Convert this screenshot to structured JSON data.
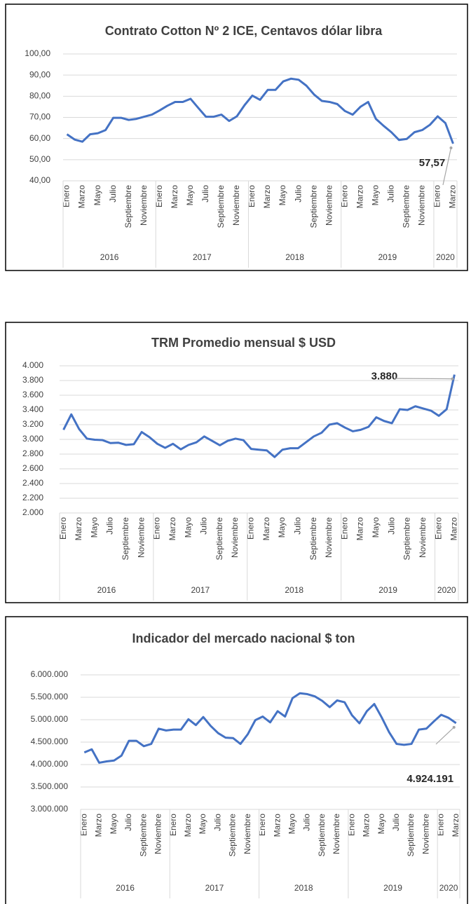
{
  "chart_data": [
    {
      "type": "line",
      "title": "Contrato Cotton Nº 2 ICE, Centavos dólar libra",
      "categories": [
        "Enero",
        null,
        "Marzo",
        null,
        "Mayo",
        null,
        "Julio",
        null,
        "Septiembre",
        null,
        "Noviembre",
        null,
        "Enero",
        null,
        "Marzo",
        null,
        "Mayo",
        null,
        "Julio",
        null,
        "Septiembre",
        null,
        "Noviembre",
        null,
        "Enero",
        null,
        "Marzo",
        null,
        "Mayo",
        null,
        "Julio",
        null,
        "Septiembre",
        null,
        "Noviembre",
        null,
        "Enero",
        null,
        "Marzo",
        null,
        "Mayo",
        null,
        "Julio",
        null,
        "Septiembre",
        null,
        "Noviembre",
        null,
        "Enero",
        null,
        "Marzo"
      ],
      "groups": [
        "2016",
        "2017",
        "2018",
        "2019",
        "2020"
      ],
      "values": [
        62,
        59.5,
        58.5,
        62,
        62.5,
        64,
        69.8,
        69.8,
        68.8,
        69.3,
        70.3,
        71.3,
        73.3,
        75.5,
        77.3,
        77.3,
        78.8,
        74.5,
        70.3,
        70.3,
        71.3,
        68.3,
        70.5,
        75.8,
        80.3,
        78.3,
        83,
        83,
        87,
        88.3,
        87.8,
        85,
        80.8,
        77.8,
        77.3,
        76.3,
        73,
        71.3,
        75,
        77.3,
        69.3,
        66,
        63,
        59.3,
        59.8,
        63,
        64,
        66.5,
        70.5,
        67.3,
        57.57
      ],
      "value_labels": [
        null,
        null,
        null,
        null,
        null,
        null,
        null,
        null,
        null,
        null,
        null,
        null,
        null,
        null,
        null,
        null,
        null,
        null,
        null,
        null,
        null,
        null,
        null,
        null,
        null,
        null,
        null,
        null,
        null,
        null,
        null,
        null,
        null,
        null,
        null,
        null,
        null,
        null,
        null,
        null,
        null,
        null,
        null,
        null,
        null,
        null,
        null,
        null,
        null,
        null,
        "57,57"
      ],
      "color": "#4472c4",
      "ylim": [
        40,
        100
      ],
      "yticks": [
        {
          "value": 40,
          "label": "40,00"
        },
        {
          "value": 50,
          "label": "50,00"
        },
        {
          "value": 60,
          "label": "60,00"
        },
        {
          "value": 70,
          "label": "70,00"
        },
        {
          "value": 80,
          "label": "80,00"
        },
        {
          "value": 90,
          "label": "90,00"
        },
        {
          "value": 100,
          "label": "100,00"
        }
      ],
      "grid": true
    },
    {
      "type": "line",
      "title": "TRM Promedio mensual $ USD",
      "categories": [
        "Enero",
        null,
        "Marzo",
        null,
        "Mayo",
        null,
        "Julio",
        null,
        "Septiembre",
        null,
        "Noviembre",
        null,
        "Enero",
        null,
        "Marzo",
        null,
        "Mayo",
        null,
        "Julio",
        null,
        "Septiembre",
        null,
        "Noviembre",
        null,
        "Enero",
        null,
        "Marzo",
        null,
        "Mayo",
        null,
        "Julio",
        null,
        "Septiembre",
        null,
        "Noviembre",
        null,
        "Enero",
        null,
        "Marzo",
        null,
        "Mayo",
        null,
        "Julio",
        null,
        "Septiembre",
        null,
        "Noviembre",
        null,
        "Enero",
        null,
        "Marzo"
      ],
      "groups": [
        "2016",
        "2017",
        "2018",
        "2019",
        "2020"
      ],
      "values": [
        3130,
        3340,
        3140,
        3010,
        2995,
        2990,
        2950,
        2955,
        2925,
        2935,
        3100,
        3030,
        2940,
        2885,
        2940,
        2865,
        2925,
        2960,
        3040,
        2980,
        2920,
        2980,
        3010,
        2990,
        2870,
        2860,
        2850,
        2760,
        2860,
        2880,
        2880,
        2960,
        3040,
        3090,
        3200,
        3220,
        3160,
        3110,
        3130,
        3170,
        3300,
        3250,
        3220,
        3410,
        3400,
        3450,
        3420,
        3390,
        3320,
        3410,
        3880
      ],
      "value_labels": [
        null,
        null,
        null,
        null,
        null,
        null,
        null,
        null,
        null,
        null,
        null,
        null,
        null,
        null,
        null,
        null,
        null,
        null,
        null,
        null,
        null,
        null,
        null,
        null,
        null,
        null,
        null,
        null,
        null,
        null,
        null,
        null,
        null,
        null,
        null,
        null,
        null,
        null,
        null,
        null,
        null,
        null,
        null,
        null,
        null,
        null,
        null,
        null,
        null,
        null,
        "3.880"
      ],
      "color": "#4472c4",
      "ylim": [
        2000,
        4000
      ],
      "yticks": [
        {
          "value": 2000,
          "label": "2.000"
        },
        {
          "value": 2200,
          "label": "2.200"
        },
        {
          "value": 2400,
          "label": "2.400"
        },
        {
          "value": 2600,
          "label": "2.600"
        },
        {
          "value": 2800,
          "label": "2.800"
        },
        {
          "value": 3000,
          "label": "3.000"
        },
        {
          "value": 3200,
          "label": "3.200"
        },
        {
          "value": 3400,
          "label": "3.400"
        },
        {
          "value": 3600,
          "label": "3.600"
        },
        {
          "value": 3800,
          "label": "3.800"
        },
        {
          "value": 4000,
          "label": "4.000"
        }
      ],
      "grid": true
    },
    {
      "type": "line",
      "title": "Indicador del mercado nacional  $ ton",
      "categories": [
        "Enero",
        null,
        "Marzo",
        null,
        "Mayo",
        null,
        "Julio",
        null,
        "Septiembre",
        null,
        "Noviembre",
        null,
        "Enero",
        null,
        "Marzo",
        null,
        "Mayo",
        null,
        "Julio",
        null,
        "Septiembre",
        null,
        "Noviembre",
        null,
        "Enero",
        null,
        "Marzo",
        null,
        "Mayo",
        null,
        "Julio",
        null,
        "Septiembre",
        null,
        "Noviembre",
        null,
        "Enero",
        null,
        "Marzo",
        null,
        "Mayo",
        null,
        "Julio",
        null,
        "Septiembre",
        null,
        "Noviembre",
        null,
        "Enero",
        null,
        "Marzo"
      ],
      "groups": [
        "2016",
        "2017",
        "2018",
        "2019",
        "2020"
      ],
      "values": [
        4270000,
        4340000,
        4040000,
        4070000,
        4090000,
        4200000,
        4530000,
        4530000,
        4410000,
        4460000,
        4800000,
        4760000,
        4780000,
        4780000,
        5010000,
        4880000,
        5060000,
        4860000,
        4700000,
        4600000,
        4590000,
        4460000,
        4680000,
        4990000,
        5070000,
        4940000,
        5190000,
        5070000,
        5480000,
        5590000,
        5570000,
        5520000,
        5420000,
        5280000,
        5430000,
        5390000,
        5100000,
        4920000,
        5190000,
        5350000,
        5050000,
        4720000,
        4460000,
        4440000,
        4460000,
        4780000,
        4800000,
        4960000,
        5110000,
        5040000,
        4924191
      ],
      "value_labels": [
        null,
        null,
        null,
        null,
        null,
        null,
        null,
        null,
        null,
        null,
        null,
        null,
        null,
        null,
        null,
        null,
        null,
        null,
        null,
        null,
        null,
        null,
        null,
        null,
        null,
        null,
        null,
        null,
        null,
        null,
        null,
        null,
        null,
        null,
        null,
        null,
        null,
        null,
        null,
        null,
        null,
        null,
        null,
        null,
        null,
        null,
        null,
        null,
        null,
        null,
        "4.924.191"
      ],
      "color": "#4472c4",
      "ylim": [
        3000000,
        6000000
      ],
      "yticks": [
        {
          "value": 3000000,
          "label": "3.000.000"
        },
        {
          "value": 3500000,
          "label": "3.500.000"
        },
        {
          "value": 4000000,
          "label": "4.000.000"
        },
        {
          "value": 4500000,
          "label": "4.500.000"
        },
        {
          "value": 5000000,
          "label": "5.000.000"
        },
        {
          "value": 5500000,
          "label": "5.500.000"
        },
        {
          "value": 6000000,
          "label": "6.000.000"
        }
      ],
      "grid": true
    }
  ]
}
